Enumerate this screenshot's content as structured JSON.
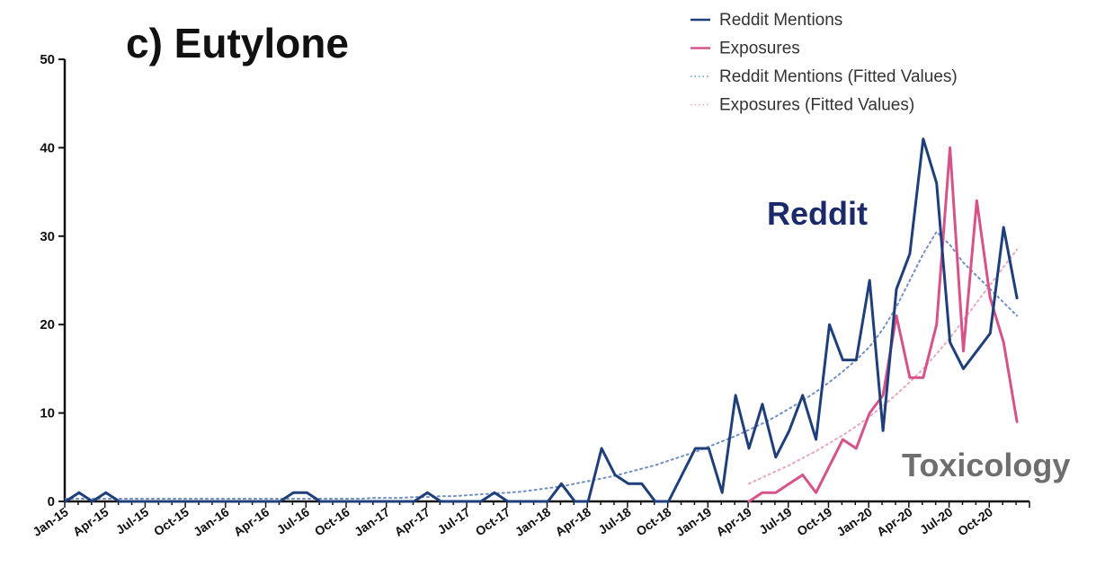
{
  "chart_data": {
    "type": "line",
    "title": "c) Eutylone",
    "xlabel": "",
    "ylabel": "",
    "ylim": [
      0,
      50
    ],
    "yticks": [
      0,
      10,
      20,
      30,
      40,
      50
    ],
    "x_tick_labels": [
      "Jan-15",
      "Apr-15",
      "Jul-15",
      "Oct-15",
      "Jan-16",
      "Apr-16",
      "Jul-16",
      "Oct-16",
      "Jan-17",
      "Apr-17",
      "Jul-17",
      "Oct-17",
      "Jan-18",
      "Apr-18",
      "Jul-18",
      "Oct-18",
      "Jan-19",
      "Apr-19",
      "Jul-19",
      "Oct-19",
      "Jan-20",
      "Apr-20",
      "Jul-20",
      "Oct-20"
    ],
    "x": [
      "Jan-15",
      "Feb-15",
      "Mar-15",
      "Apr-15",
      "May-15",
      "Jun-15",
      "Jul-15",
      "Aug-15",
      "Sep-15",
      "Oct-15",
      "Nov-15",
      "Dec-15",
      "Jan-16",
      "Feb-16",
      "Mar-16",
      "Apr-16",
      "May-16",
      "Jun-16",
      "Jul-16",
      "Aug-16",
      "Sep-16",
      "Oct-16",
      "Nov-16",
      "Dec-16",
      "Jan-17",
      "Feb-17",
      "Mar-17",
      "Apr-17",
      "May-17",
      "Jun-17",
      "Jul-17",
      "Aug-17",
      "Sep-17",
      "Oct-17",
      "Nov-17",
      "Dec-17",
      "Jan-18",
      "Feb-18",
      "Mar-18",
      "Apr-18",
      "May-18",
      "Jun-18",
      "Jul-18",
      "Aug-18",
      "Sep-18",
      "Oct-18",
      "Nov-18",
      "Dec-18",
      "Jan-19",
      "Feb-19",
      "Mar-19",
      "Apr-19",
      "May-19",
      "Jun-19",
      "Jul-19",
      "Aug-19",
      "Sep-19",
      "Oct-19",
      "Nov-19",
      "Dec-19",
      "Jan-20",
      "Feb-20",
      "Mar-20",
      "Apr-20",
      "May-20",
      "Jun-20",
      "Jul-20",
      "Aug-20",
      "Sep-20",
      "Oct-20",
      "Nov-20",
      "Dec-20"
    ],
    "series": [
      {
        "name": "Reddit Mentions",
        "color": "#1f3f7a",
        "style": "solid",
        "values": [
          0,
          1,
          0,
          1,
          0,
          0,
          0,
          0,
          0,
          0,
          0,
          0,
          0,
          0,
          0,
          0,
          0,
          1,
          1,
          0,
          0,
          0,
          0,
          0,
          0,
          0,
          0,
          1,
          0,
          0,
          0,
          0,
          1,
          0,
          0,
          0,
          0,
          2,
          0,
          0,
          6,
          3,
          2,
          2,
          0,
          0,
          3,
          6,
          6,
          1,
          12,
          6,
          11,
          5,
          8,
          12,
          7,
          20,
          16,
          16,
          25,
          8,
          24,
          28,
          41,
          36,
          18,
          15,
          17,
          19,
          31,
          23
        ]
      },
      {
        "name": "Exposures",
        "color": "#d6538a",
        "style": "solid",
        "values": [
          null,
          null,
          null,
          null,
          null,
          null,
          null,
          null,
          null,
          null,
          null,
          null,
          null,
          null,
          null,
          null,
          null,
          null,
          null,
          null,
          null,
          null,
          null,
          null,
          null,
          null,
          null,
          null,
          null,
          null,
          null,
          null,
          null,
          null,
          null,
          null,
          null,
          null,
          null,
          null,
          null,
          null,
          null,
          null,
          null,
          null,
          null,
          null,
          null,
          null,
          null,
          0,
          1,
          1,
          2,
          3,
          1,
          4,
          7,
          6,
          10,
          12,
          21,
          14,
          14,
          20,
          40,
          17,
          34,
          23,
          18,
          9
        ]
      },
      {
        "name": "Reddit Mentions (Fitted Values)",
        "color": "#6f8fc4",
        "style": "dotted",
        "values": [
          0.3,
          0.3,
          0.3,
          0.3,
          0.3,
          0.3,
          0.3,
          0.3,
          0.3,
          0.3,
          0.3,
          0.3,
          0.3,
          0.3,
          0.3,
          0.3,
          0.3,
          0.3,
          0.3,
          0.3,
          0.3,
          0.3,
          0.3,
          0.4,
          0.4,
          0.4,
          0.5,
          0.5,
          0.6,
          0.6,
          0.7,
          0.8,
          0.9,
          1.0,
          1.1,
          1.3,
          1.5,
          1.7,
          2.0,
          2.3,
          2.6,
          2.9,
          3.3,
          3.7,
          4.1,
          4.6,
          5.1,
          5.6,
          6.2,
          6.8,
          7.4,
          8.1,
          8.8,
          9.6,
          10.5,
          11.4,
          12.4,
          13.5,
          14.7,
          16.0,
          17.5,
          19.5,
          22.0,
          25.0,
          28.0,
          30.5,
          29.0,
          27.0,
          25.5,
          24.0,
          22.5,
          21.0
        ]
      },
      {
        "name": "Exposures (Fitted Values)",
        "color": "#e9a6c3",
        "style": "dotted",
        "values": [
          null,
          null,
          null,
          null,
          null,
          null,
          null,
          null,
          null,
          null,
          null,
          null,
          null,
          null,
          null,
          null,
          null,
          null,
          null,
          null,
          null,
          null,
          null,
          null,
          null,
          null,
          null,
          null,
          null,
          null,
          null,
          null,
          null,
          null,
          null,
          null,
          null,
          null,
          null,
          null,
          null,
          null,
          null,
          null,
          null,
          null,
          null,
          null,
          null,
          null,
          null,
          2.0,
          2.7,
          3.4,
          4.1,
          4.9,
          5.7,
          6.6,
          7.5,
          8.5,
          9.6,
          10.8,
          12.1,
          13.5,
          15.0,
          16.7,
          18.5,
          20.5,
          22.5,
          24.5,
          26.5,
          28.5
        ]
      }
    ],
    "legend": {
      "position": "top-right",
      "entries": [
        "Reddit Mentions",
        "Exposures",
        "Reddit Mentions (Fitted Values)",
        "Exposures (Fitted Values)"
      ]
    },
    "annotations": [
      {
        "text": "Reddit",
        "color": "#1b2a6b"
      },
      {
        "text": "Toxicology",
        "color": "#6e6e6e"
      }
    ],
    "grid": false
  }
}
